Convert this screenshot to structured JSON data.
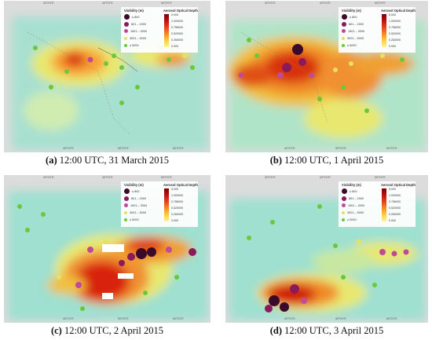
{
  "panels": [
    {
      "id": "a",
      "letter": "(a)",
      "text": "12:00 UTC, 31 March 2015"
    },
    {
      "id": "b",
      "letter": "(b)",
      "text": "12:00 UTC, 1 April 2015"
    },
    {
      "id": "c",
      "letter": "(c)",
      "text": "12:00 UTC, 2 April 2015"
    },
    {
      "id": "d",
      "letter": "(d)",
      "text": "12:00 UTC, 3 April 2015"
    }
  ],
  "legend": {
    "visibility_title": "Visibility (m)",
    "aod_title": "Aerosol Optical Depth",
    "visibility_classes": [
      "≤ 800",
      "801 – 1500",
      "1501 – 3000",
      "3001 – 5000",
      "≥ 5000"
    ],
    "visibility_colors": [
      "#3a0a2a",
      "#8a1a5a",
      "#c04a9a",
      "#e8e060",
      "#6ac83a"
    ],
    "aod_ticks": [
      "5.000",
      "1.000000",
      "0.756000",
      "0.520000",
      "0.260000",
      "0.000"
    ]
  },
  "axis_labels": {
    "top": [
      "30°0'0\"E",
      "40°0'0\"E",
      "50°0'0\"E"
    ],
    "bottom": [
      "40°0'0\"E",
      "50°0'0\"E",
      "60°0'0\"E"
    ]
  },
  "colors": {
    "background_low": "#9fe0d0",
    "mid": "#d8e870",
    "high": "#f8a030",
    "very_high": "#d01810",
    "land_gray": "#dcdcdc"
  }
}
